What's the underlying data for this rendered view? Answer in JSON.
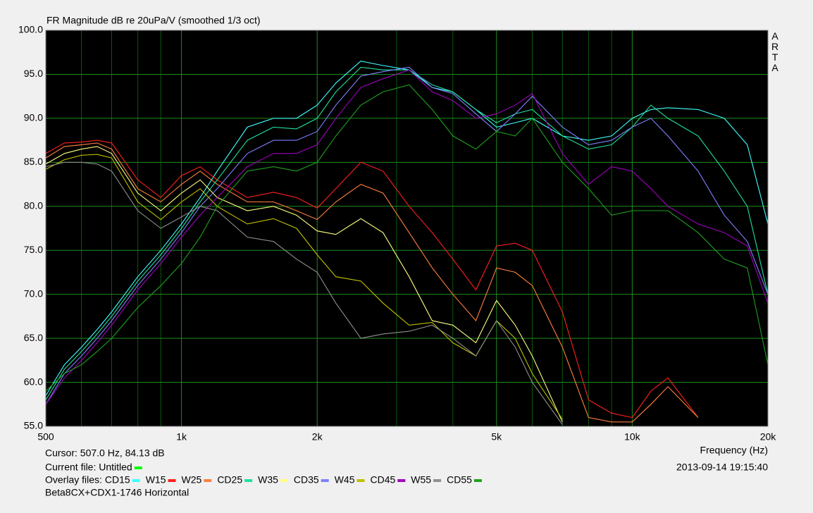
{
  "chart_data": {
    "type": "line",
    "title": "FR Magnitude dB re 20uPa/V (smoothed 1/3 oct)",
    "brand": "ARTA",
    "x_label": "Frequency (Hz)",
    "cursor": "Cursor: 507.0 Hz, 84.13 dB",
    "timestamp": "2013-09-14  19:15:40",
    "current_file_label": "Current file: Untitled",
    "current_file_color": "#00ff00",
    "overlay_label": "Overlay files:",
    "footer": "Beta8CX+CDX1-1746 Horizontal",
    "x_log": true,
    "grid": true,
    "xlim": [
      500,
      20000
    ],
    "ylim": [
      55,
      100
    ],
    "xticks": [
      500,
      {
        "value": 1000,
        "label": "1k"
      },
      {
        "value": 2000,
        "label": "2k"
      },
      {
        "value": 5000,
        "label": "5k"
      },
      {
        "value": 10000,
        "label": "10k"
      },
      {
        "value": 20000,
        "label": "20k"
      }
    ],
    "xminor_ticks": [
      600,
      700,
      800,
      900,
      3000,
      4000,
      6000,
      7000,
      8000,
      9000
    ],
    "yticks": [
      {
        "value": 55,
        "label": "55.0"
      },
      {
        "value": 60,
        "label": "60.0"
      },
      {
        "value": 65,
        "label": "65.0"
      },
      {
        "value": 70,
        "label": "70.0"
      },
      {
        "value": 75,
        "label": "75.0"
      },
      {
        "value": 80,
        "label": "80.0"
      },
      {
        "value": 85,
        "label": "85.0"
      },
      {
        "value": 90,
        "label": "90.0"
      },
      {
        "value": 95,
        "label": "95.0"
      },
      {
        "value": 100,
        "label": "100.0"
      }
    ],
    "x": [
      500,
      550,
      600,
      650,
      700,
      800,
      900,
      1000,
      1100,
      1200,
      1400,
      1600,
      1800,
      2000,
      2200,
      2500,
      2800,
      3200,
      3600,
      4000,
      4500,
      5000,
      5500,
      6000,
      7000,
      8000,
      9000,
      10000,
      11000,
      12000,
      14000,
      16000,
      18000,
      20000
    ],
    "series": [
      {
        "name": "CD15",
        "color": "#40ffff",
        "values": [
          58.5,
          62,
          64,
          66,
          68,
          72,
          75,
          78,
          81,
          84,
          89,
          90,
          90,
          91.5,
          94,
          96.5,
          96,
          95.5,
          93.5,
          93,
          91,
          89,
          89.5,
          90,
          88,
          87.5,
          88,
          90,
          91,
          91.2,
          91,
          90,
          87,
          78
        ]
      },
      {
        "name": "W15",
        "color": "#ff2020",
        "values": [
          86,
          87.2,
          87.3,
          87.5,
          87.2,
          83,
          81,
          83.5,
          84.5,
          83,
          81,
          81.6,
          81,
          79.8,
          82,
          85,
          84,
          80,
          77,
          74,
          70.5,
          75.5,
          75.8,
          75,
          68,
          58,
          56.5,
          56,
          59,
          60.5,
          56,
          null,
          null,
          null
        ]
      },
      {
        "name": "W25",
        "color": "#ff8040",
        "values": [
          85.5,
          86.8,
          87,
          87.2,
          86.5,
          82,
          80.5,
          82.5,
          84,
          82.5,
          80.5,
          80.5,
          79.5,
          78.5,
          80.5,
          82.5,
          81.5,
          77,
          73,
          70,
          67,
          73,
          72.5,
          71,
          64,
          56,
          55.5,
          55.5,
          57.5,
          59.5,
          56,
          null,
          null,
          null
        ]
      },
      {
        "name": "CD25",
        "color": "#20e0a0",
        "values": [
          58,
          61.5,
          63.5,
          65.5,
          67.5,
          71.5,
          74.5,
          77.5,
          80.5,
          83,
          87.5,
          89,
          88.8,
          90,
          93,
          95.8,
          95.5,
          95.5,
          93.8,
          93,
          91,
          89.5,
          90.5,
          91,
          88,
          86.5,
          87,
          89,
          91.5,
          90,
          88,
          84,
          80,
          70
        ]
      },
      {
        "name": "W35",
        "color": "#ffff80",
        "values": [
          84.8,
          86,
          86.5,
          86.8,
          86,
          81.5,
          79.5,
          81.5,
          83,
          81,
          79.5,
          80,
          79,
          77.2,
          76.8,
          78.6,
          77,
          72,
          67,
          66.5,
          64.5,
          69.3,
          66.5,
          63,
          55.5,
          null,
          null,
          null,
          null,
          null,
          null,
          null,
          null,
          null
        ]
      },
      {
        "name": "CD35",
        "color": "#8080ff",
        "values": [
          57.5,
          61,
          63,
          65,
          67,
          71,
          74,
          77,
          80,
          82,
          86,
          87.5,
          87.5,
          88.5,
          91.5,
          94.8,
          95.3,
          95.8,
          93.5,
          92.8,
          90.5,
          88.5,
          90.5,
          92.5,
          89,
          87,
          87.5,
          89,
          90,
          88,
          84,
          79,
          76,
          70
        ]
      },
      {
        "name": "W45",
        "color": "#c0c000",
        "values": [
          84.2,
          85.3,
          85.8,
          85.9,
          85.5,
          80.5,
          78.5,
          80.5,
          82,
          80,
          78,
          78.6,
          77.5,
          74.5,
          72,
          71.5,
          69,
          66.5,
          66.8,
          64.5,
          63,
          67,
          65,
          61,
          55.8,
          null,
          null,
          null,
          null,
          null,
          null,
          null,
          null,
          null
        ]
      },
      {
        "name": "CD45",
        "color": "#a000c0",
        "values": [
          57.5,
          60.5,
          62.5,
          64.5,
          66.5,
          70.5,
          73.5,
          76.5,
          79,
          81,
          84.5,
          86,
          86,
          87,
          90,
          93.5,
          94.5,
          95.5,
          93,
          92,
          90,
          90.5,
          91.5,
          92.8,
          86,
          82.5,
          84.5,
          84,
          82,
          80,
          78,
          77,
          75.5,
          69
        ]
      },
      {
        "name": "W55",
        "color": "#909090",
        "values": [
          84.5,
          85,
          85,
          84.8,
          84,
          79.5,
          77.5,
          78.8,
          80,
          79.5,
          76.5,
          76,
          74,
          72.5,
          69,
          65,
          65.5,
          65.8,
          66.5,
          65,
          63,
          67,
          64,
          60,
          55.2,
          null,
          null,
          null,
          null,
          null,
          null,
          null,
          null,
          null
        ]
      },
      {
        "name": "CD55",
        "color": "#20a020",
        "values": [
          59,
          61,
          62,
          63.5,
          65,
          68.5,
          71,
          73.5,
          76.5,
          80,
          84,
          84.5,
          84,
          85,
          88,
          91.5,
          93,
          93.8,
          91,
          88,
          86.5,
          88.5,
          88,
          90,
          85,
          82,
          79,
          79.5,
          79.5,
          79.5,
          77,
          74,
          73,
          62
        ]
      }
    ]
  }
}
